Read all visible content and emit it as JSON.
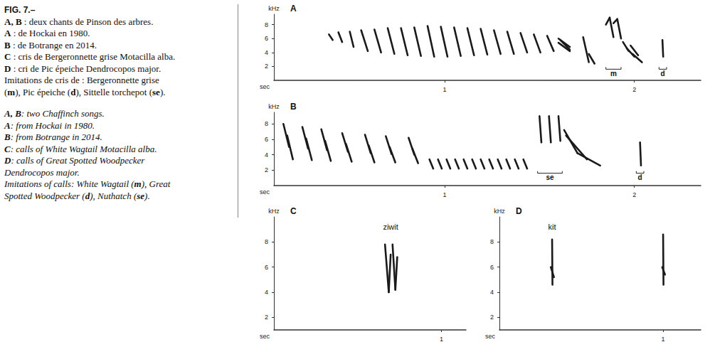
{
  "caption": {
    "title": "FIG. 7.–",
    "french": [
      "A, B : deux chants de Pinson des arbres.",
      "A : de Hockai en 1980.",
      "B : de Botrange en 2014.",
      "C : cris de Bergeronnette grise Motacilla alba.",
      "D : cri de Pic épeiche Dendrocopos major.",
      "Imitations de cris de : Bergeronnette grise",
      "(m), Pic épeiche (d), Sittelle torchepot (se)."
    ],
    "english": [
      "A, B: two Chaffinch songs.",
      "A: from Hockai in 1980.",
      "B: from Botrange in 2014.",
      "C: calls of White Wagtail Motacilla alba.",
      "D: calls of Great Spotted Woodpecker",
      "Dendrocopos major.",
      "Imitations of calls: White Wagtail (m), Great",
      "Spotted Woodpecker (d), Nuthatch (se)."
    ]
  },
  "chart_data": [
    {
      "panel": "A",
      "type": "spectrogram",
      "x_label": "sec",
      "y_label": "kHz",
      "xlim": [
        0.1,
        2.35
      ],
      "xticks": [
        1,
        2
      ],
      "ylim": [
        0,
        9.5
      ],
      "yticks": [
        2,
        4,
        6,
        8
      ],
      "strokes": [
        [
          0.39,
          6.6,
          0.41,
          5.8
        ],
        [
          0.44,
          6.9,
          0.46,
          5.5
        ],
        [
          0.5,
          7.0,
          0.52,
          4.8
        ],
        [
          0.56,
          7.2,
          0.595,
          4.2
        ],
        [
          0.63,
          7.3,
          0.665,
          4.0
        ],
        [
          0.7,
          7.5,
          0.735,
          3.8
        ],
        [
          0.77,
          7.5,
          0.805,
          3.6
        ],
        [
          0.84,
          7.6,
          0.875,
          3.5
        ],
        [
          0.91,
          7.8,
          0.945,
          3.4
        ],
        [
          0.98,
          7.7,
          1.015,
          3.4
        ],
        [
          1.05,
          7.6,
          1.085,
          3.5
        ],
        [
          1.12,
          7.5,
          1.155,
          3.6
        ],
        [
          1.19,
          7.4,
          1.225,
          3.7
        ],
        [
          1.26,
          7.2,
          1.295,
          3.8
        ],
        [
          1.33,
          7.0,
          1.365,
          3.8
        ],
        [
          1.4,
          6.8,
          1.435,
          4.0
        ],
        [
          1.47,
          6.6,
          1.505,
          4.0
        ],
        [
          1.54,
          6.4,
          1.575,
          4.2
        ],
        [
          1.6,
          6.0,
          1.66,
          4.8
        ],
        [
          1.6,
          5.4,
          1.66,
          4.2
        ],
        [
          1.61,
          5.8,
          1.66,
          4.4
        ],
        [
          1.73,
          6.2,
          1.76,
          2.6
        ],
        [
          1.76,
          3.8,
          1.79,
          2.4
        ],
        [
          1.85,
          8.0,
          1.87,
          9.0
        ],
        [
          1.87,
          9.0,
          1.89,
          6.2
        ],
        [
          1.89,
          8.2,
          1.91,
          8.8
        ],
        [
          1.91,
          8.8,
          1.93,
          6.0
        ],
        [
          1.94,
          5.5,
          1.97,
          4.2
        ],
        [
          1.96,
          4.6,
          2.0,
          3.4
        ],
        [
          1.99,
          3.8,
          2.04,
          2.6
        ],
        [
          1.98,
          5.0,
          2.02,
          3.6
        ],
        [
          2.148,
          5.8,
          2.152,
          3.4
        ]
      ],
      "annotations": [
        {
          "text": "m",
          "bracket": [
            1.85,
            1.93
          ],
          "f": 1.6
        },
        {
          "text": "d",
          "bracket": [
            2.13,
            2.17
          ],
          "f": 1.6
        }
      ]
    },
    {
      "panel": "B",
      "type": "spectrogram",
      "x_label": "sec",
      "y_label": "kHz",
      "xlim": [
        0.1,
        2.35
      ],
      "xticks": [
        1,
        2
      ],
      "ylim": [
        0,
        9.5
      ],
      "yticks": [
        2,
        4,
        6,
        8
      ],
      "strokes": [
        [
          0.15,
          8.0,
          0.18,
          5.0
        ],
        [
          0.17,
          6.5,
          0.2,
          3.4
        ],
        [
          0.25,
          7.6,
          0.28,
          4.8
        ],
        [
          0.27,
          6.1,
          0.3,
          3.3
        ],
        [
          0.35,
          7.3,
          0.38,
          4.6
        ],
        [
          0.37,
          5.8,
          0.4,
          3.2
        ],
        [
          0.46,
          6.8,
          0.49,
          4.4
        ],
        [
          0.48,
          5.4,
          0.51,
          3.1
        ],
        [
          0.58,
          6.6,
          0.61,
          4.2
        ],
        [
          0.6,
          5.2,
          0.63,
          3.0
        ],
        [
          0.69,
          6.4,
          0.72,
          4.1
        ],
        [
          0.71,
          5.0,
          0.74,
          3.0
        ],
        [
          0.81,
          6.2,
          0.84,
          4.0
        ],
        [
          0.83,
          4.8,
          0.86,
          2.9
        ],
        [
          0.92,
          3.4,
          0.94,
          2.2
        ],
        [
          0.965,
          3.4,
          0.985,
          2.2
        ],
        [
          1.01,
          3.4,
          1.03,
          2.2
        ],
        [
          1.055,
          3.4,
          1.075,
          2.2
        ],
        [
          1.1,
          3.4,
          1.12,
          2.2
        ],
        [
          1.145,
          3.4,
          1.165,
          2.2
        ],
        [
          1.19,
          3.4,
          1.21,
          2.2
        ],
        [
          1.235,
          3.4,
          1.255,
          2.2
        ],
        [
          1.28,
          3.4,
          1.3,
          2.2
        ],
        [
          1.325,
          3.4,
          1.345,
          2.2
        ],
        [
          1.37,
          3.4,
          1.39,
          2.2
        ],
        [
          1.415,
          3.4,
          1.435,
          2.2
        ],
        [
          1.5,
          9.0,
          1.51,
          5.6
        ],
        [
          1.55,
          9.0,
          1.56,
          5.6
        ],
        [
          1.6,
          9.0,
          1.61,
          5.8
        ],
        [
          1.63,
          7.2,
          1.7,
          4.2
        ],
        [
          1.7,
          4.2,
          1.82,
          2.6
        ],
        [
          1.64,
          6.5,
          1.75,
          3.4
        ],
        [
          2.03,
          5.6,
          2.035,
          2.6
        ]
      ],
      "annotations": [
        {
          "text": "se",
          "bracket": [
            1.49,
            1.62
          ],
          "f": 1.6
        },
        {
          "text": "d",
          "bracket": [
            2.01,
            2.05
          ],
          "f": 1.6
        }
      ]
    },
    {
      "panel": "C",
      "type": "spectrogram",
      "x_label": "sec",
      "y_label": "kHz",
      "xlim": [
        0.11,
        1.13
      ],
      "xticks": [
        1
      ],
      "ylim": [
        1,
        10
      ],
      "yticks": [
        2,
        4,
        6,
        8
      ],
      "strokes": [
        [
          0.7,
          7.8,
          0.72,
          4.0
        ],
        [
          0.72,
          4.0,
          0.73,
          7.0
        ],
        [
          0.74,
          7.8,
          0.755,
          4.2
        ],
        [
          0.755,
          4.2,
          0.765,
          6.8
        ]
      ],
      "annotations": [
        {
          "text": "ziwit",
          "t": 0.73,
          "f": 9.2
        }
      ]
    },
    {
      "panel": "D",
      "type": "spectrogram",
      "x_label": "sec",
      "y_label": "kHz",
      "xlim": [
        0.13,
        1.2
      ],
      "xticks": [
        1
      ],
      "ylim": [
        1,
        10
      ],
      "yticks": [
        2,
        4,
        6,
        8
      ],
      "strokes": [
        [
          0.41,
          8.2,
          0.412,
          4.6
        ],
        [
          0.403,
          6.0,
          0.42,
          5.2
        ],
        [
          1.0,
          8.6,
          1.002,
          4.6
        ],
        [
          0.995,
          6.0,
          1.01,
          5.4
        ]
      ],
      "annotations": [
        {
          "text": "kit",
          "t": 0.41,
          "f": 9.2
        }
      ]
    }
  ]
}
